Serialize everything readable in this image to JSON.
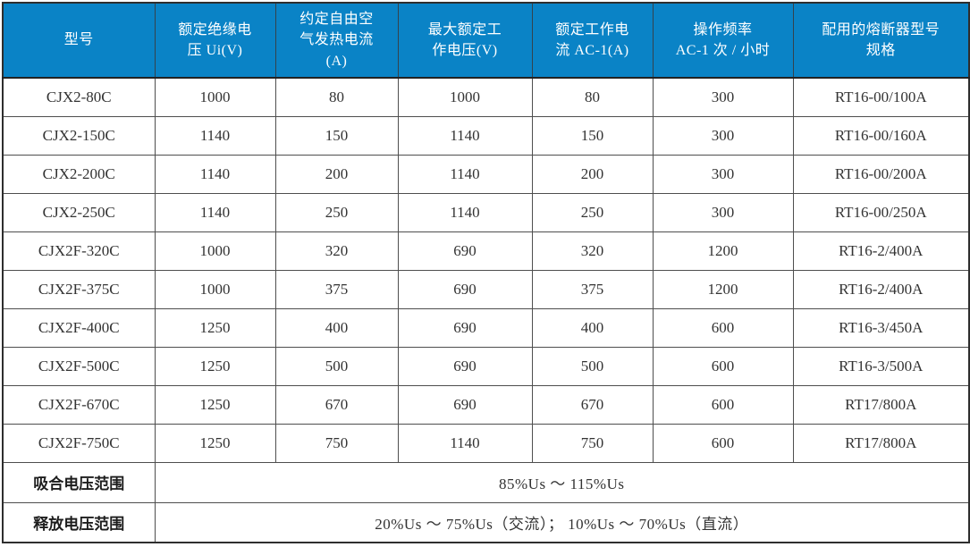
{
  "theme": {
    "header_bg": "#0a83c6",
    "header_fg": "#ffffff",
    "border": "#4e4e4e",
    "text": "#333333"
  },
  "table": {
    "columns": [
      {
        "label": "型号"
      },
      {
        "label": "额定绝缘电\n压 Ui(V)"
      },
      {
        "label": "约定自由空\n气发热电流\n(A)"
      },
      {
        "label": "最大额定工\n作电压(V)"
      },
      {
        "label": "额定工作电\n流 AC-1(A)"
      },
      {
        "label": "操作频率\nAC-1 次 / 小时"
      },
      {
        "label": "配用的熔断器型号\n规格"
      }
    ],
    "rows": [
      {
        "model": "CJX2-80C",
        "values": [
          "1000",
          "80",
          "1000",
          "80",
          "300",
          "RT16-00/100A"
        ]
      },
      {
        "model": "CJX2-150C",
        "values": [
          "1140",
          "150",
          "1140",
          "150",
          "300",
          "RT16-00/160A"
        ]
      },
      {
        "model": "CJX2-200C",
        "values": [
          "1140",
          "200",
          "1140",
          "200",
          "300",
          "RT16-00/200A"
        ]
      },
      {
        "model": "CJX2-250C",
        "values": [
          "1140",
          "250",
          "1140",
          "250",
          "300",
          "RT16-00/250A"
        ]
      },
      {
        "model": "CJX2F-320C",
        "values": [
          "1000",
          "320",
          "690",
          "320",
          "1200",
          "RT16-2/400A"
        ]
      },
      {
        "model": "CJX2F-375C",
        "values": [
          "1000",
          "375",
          "690",
          "375",
          "1200",
          "RT16-2/400A"
        ]
      },
      {
        "model": "CJX2F-400C",
        "values": [
          "1250",
          "400",
          "690",
          "400",
          "600",
          "RT16-3/450A"
        ]
      },
      {
        "model": "CJX2F-500C",
        "values": [
          "1250",
          "500",
          "690",
          "500",
          "600",
          "RT16-3/500A"
        ]
      },
      {
        "model": "CJX2F-670C",
        "values": [
          "1250",
          "670",
          "690",
          "670",
          "600",
          "RT17/800A"
        ]
      },
      {
        "model": "CJX2F-750C",
        "values": [
          "1250",
          "750",
          "1140",
          "750",
          "600",
          "RT17/800A"
        ]
      }
    ],
    "footer_rows": [
      {
        "label": "吸合电压范围",
        "value": "85%Us ～ 115%Us"
      },
      {
        "label": "释放电压范围",
        "value": "20%Us ～ 75%Us（交流）； 10%Us ～ 70%Us（直流）"
      }
    ]
  }
}
